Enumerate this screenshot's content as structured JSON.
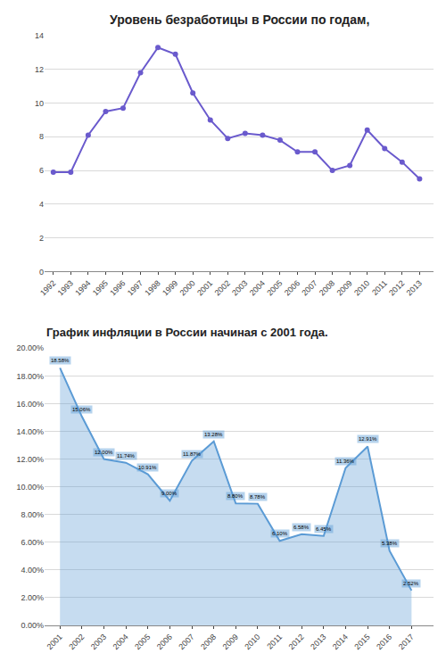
{
  "chart_data": [
    {
      "type": "line",
      "title": "Уровень безработицы в России по годам,",
      "x": [
        1992,
        1993,
        1994,
        1995,
        1996,
        1997,
        1998,
        1999,
        2000,
        2001,
        2002,
        2003,
        2004,
        2005,
        2006,
        2007,
        2008,
        2009,
        2010,
        2011,
        2012,
        2013
      ],
      "values": [
        5.9,
        5.9,
        8.1,
        9.5,
        9.7,
        11.8,
        13.3,
        12.9,
        10.6,
        9.0,
        7.9,
        8.2,
        8.1,
        7.8,
        7.1,
        7.1,
        6.0,
        6.3,
        8.4,
        7.3,
        6.5,
        5.5
      ],
      "color": "#6a5acd",
      "marker": "circle",
      "xlim": [
        1991.5,
        2013.8
      ],
      "xticks": [
        1992,
        1993,
        1994,
        1995,
        1996,
        1997,
        1998,
        1999,
        2000,
        2001,
        2002,
        2003,
        2004,
        2005,
        2006,
        2007,
        2008,
        2009,
        2010,
        2011,
        2012,
        2013
      ],
      "ylim": [
        0,
        14
      ],
      "yticks": [
        0,
        2,
        4,
        6,
        8,
        10,
        12,
        14
      ],
      "grid": true
    },
    {
      "type": "area",
      "title": "График инфляции в России начиная с 2001 года.",
      "x": [
        2001,
        2002,
        2003,
        2004,
        2005,
        2006,
        2007,
        2008,
        2009,
        2010,
        2011,
        2012,
        2013,
        2014,
        2015,
        2016,
        2017
      ],
      "values": [
        18.58,
        15.06,
        12.0,
        11.74,
        10.91,
        9.0,
        11.87,
        13.28,
        8.8,
        8.78,
        6.1,
        6.58,
        6.45,
        11.36,
        12.91,
        5.38,
        2.52
      ],
      "value_labels": [
        "18.58%",
        "15.06%",
        "12.00%",
        "11.74%",
        "10.91%",
        "9.00%",
        "11.87%",
        "13.28%",
        "8.80%",
        "8.78%",
        "6.10%",
        "6.58%",
        "6.45%",
        "11.36%",
        "12.91%",
        "5.38%",
        "2.52%"
      ],
      "data_labels": true,
      "color": "#5b9bd5",
      "xlim": [
        2000.3,
        2018.0
      ],
      "xticks": [
        2001,
        2002,
        2003,
        2004,
        2005,
        2006,
        2007,
        2008,
        2009,
        2010,
        2011,
        2012,
        2013,
        2014,
        2015,
        2016,
        2017
      ],
      "ylim": [
        0,
        20
      ],
      "yticks": [
        {
          "value": 0,
          "label": "0.00%"
        },
        {
          "value": 2,
          "label": "2.00%"
        },
        {
          "value": 4,
          "label": "4.00%"
        },
        {
          "value": 6,
          "label": "6.00%"
        },
        {
          "value": 8,
          "label": "8.00%"
        },
        {
          "value": 10,
          "label": "10.00%"
        },
        {
          "value": 12,
          "label": "12.00%"
        },
        {
          "value": 14,
          "label": "14.00%"
        },
        {
          "value": 16,
          "label": "16.00%"
        },
        {
          "value": 18,
          "label": "18.00%"
        },
        {
          "value": 20,
          "label": "20.00%"
        }
      ],
      "grid": true
    }
  ]
}
